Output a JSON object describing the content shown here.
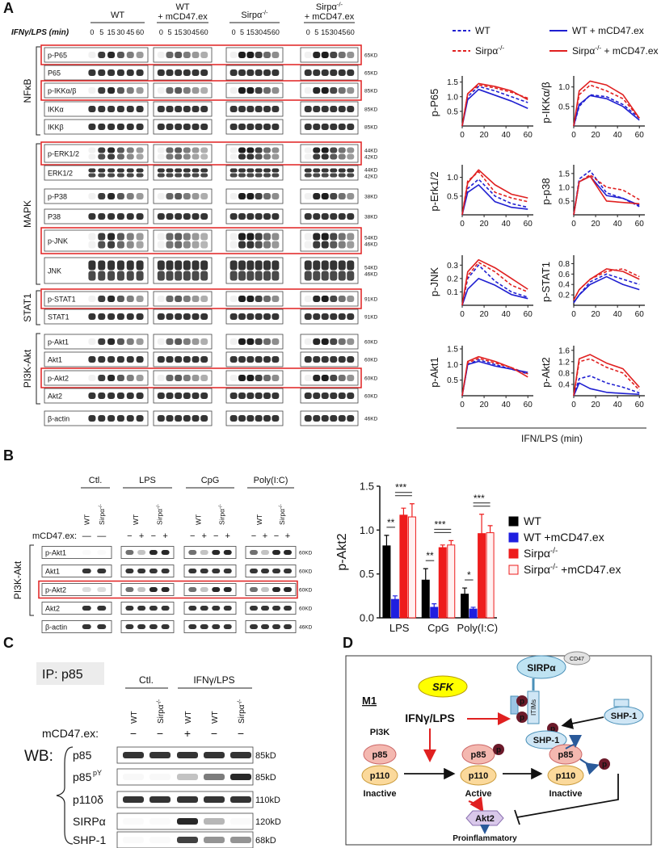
{
  "panel_a": {
    "label": "A",
    "groups": [
      [
        "WT"
      ],
      [
        "WT",
        "+ mCD47.ex"
      ],
      [
        "Sirpα-/-"
      ],
      [
        "Sirpα-/-",
        "+ mCD47.ex"
      ]
    ],
    "time_label": "IFNγ/LPS (min)",
    "times": [
      0,
      5,
      15,
      30,
      45,
      60
    ],
    "categories": [
      {
        "name": "NFκB",
        "rows": [
          {
            "label": "p-P65",
            "kd": [
              "65KD"
            ],
            "highlight": true
          },
          {
            "label": "P65",
            "kd": [
              "65KD"
            ]
          },
          {
            "label": "p-IKKα/β",
            "kd": [
              "85KD"
            ],
            "highlight": true
          },
          {
            "label": "IKKα",
            "kd": [
              "85KD"
            ]
          },
          {
            "label": "IKKβ",
            "kd": [
              "85KD"
            ]
          }
        ]
      },
      {
        "name": "MAPK",
        "rows": [
          {
            "label": "p-ERK1/2",
            "kd": [
              "44KD",
              "42KD"
            ],
            "highlight": true
          },
          {
            "label": "ERK1/2",
            "kd": [
              "44KD",
              "42KD"
            ]
          },
          {
            "label": "p-P38",
            "kd": [
              "38KD"
            ]
          },
          {
            "label": "P38",
            "kd": [
              "38KD"
            ]
          },
          {
            "label": "p-JNK",
            "kd": [
              "54KD",
              "46KD"
            ],
            "highlight": true
          },
          {
            "label": "JNK",
            "kd": [
              "54KD",
              "46KD"
            ]
          }
        ]
      },
      {
        "name": "STAT1",
        "rows": [
          {
            "label": "p-STAT1",
            "kd": [
              "91KD"
            ],
            "highlight": true
          },
          {
            "label": "STAT1",
            "kd": [
              "91KD"
            ]
          }
        ]
      },
      {
        "name": "PI3K-Akt",
        "rows": [
          {
            "label": "p-Akt1",
            "kd": [
              "60KD"
            ]
          },
          {
            "label": "Akt1",
            "kd": [
              "60KD"
            ]
          },
          {
            "label": "p-Akt2",
            "kd": [
              "60KD"
            ],
            "highlight": true
          },
          {
            "label": "Akt2",
            "kd": [
              "60KD"
            ]
          }
        ]
      }
    ],
    "loading": {
      "label": "β-actin",
      "kd": [
        "46KD"
      ]
    },
    "line_legend": [
      {
        "name": "WT",
        "color": "#1f1fd1",
        "dash": "dotted"
      },
      {
        "name": "Sirpα-/-",
        "color": "#e02020",
        "dash": "dotted"
      },
      {
        "name": "WT + mCD47.ex",
        "color": "#1f1fd1",
        "dash": "solid"
      },
      {
        "name": "Sirpα-/- + mCD47.ex",
        "color": "#e02020",
        "dash": "solid"
      }
    ],
    "line_xlabel": "IFN/LPS (min)"
  },
  "chart_data": [
    {
      "type": "line",
      "ylabel": "p-P65",
      "x": [
        0,
        5,
        15,
        30,
        45,
        60
      ],
      "xlim": [
        0,
        65
      ],
      "xticks": [
        0,
        20,
        40,
        60
      ],
      "ylim": [
        0,
        1.6
      ],
      "yticks": [
        0.5,
        {
          "value": 1,
          "label": "1.0"
        },
        1.5
      ],
      "series": [
        {
          "values": [
            0,
            1.0,
            1.35,
            1.2,
            1.0,
            0.8
          ]
        },
        {
          "values": [
            0,
            1.1,
            1.4,
            1.3,
            1.15,
            0.95
          ]
        },
        {
          "values": [
            0,
            0.9,
            1.25,
            1.05,
            0.85,
            0.6
          ]
        },
        {
          "values": [
            0,
            1.1,
            1.45,
            1.35,
            1.2,
            0.9
          ]
        }
      ]
    },
    {
      "type": "line",
      "ylabel": "p-IKKα/β",
      "x": [
        0,
        5,
        15,
        30,
        45,
        60
      ],
      "xlim": [
        0,
        65
      ],
      "xticks": [
        0,
        20,
        40,
        60
      ],
      "ylim": [
        0,
        1.2
      ],
      "yticks": [
        0.5,
        {
          "value": 1,
          "label": "1.0"
        }
      ],
      "series": [
        {
          "values": [
            0,
            0.5,
            0.8,
            0.75,
            0.55,
            0.2
          ]
        },
        {
          "values": [
            0,
            0.8,
            1.05,
            0.9,
            0.7,
            0.2
          ]
        },
        {
          "values": [
            0,
            0.55,
            0.78,
            0.7,
            0.5,
            0.15
          ]
        },
        {
          "values": [
            0,
            0.9,
            1.15,
            1.05,
            0.8,
            0.2
          ]
        }
      ]
    },
    {
      "type": "line",
      "ylabel": "p-Erk1/2",
      "x": [
        0,
        5,
        15,
        30,
        45,
        60
      ],
      "xlim": [
        0,
        65
      ],
      "xticks": [
        0,
        20,
        40,
        60
      ],
      "ylim": [
        0,
        1.25
      ],
      "yticks": [
        0.5,
        {
          "value": 1,
          "label": "1.0"
        }
      ],
      "series": [
        {
          "values": [
            0,
            0.7,
            0.95,
            0.5,
            0.3,
            0.2
          ]
        },
        {
          "values": [
            0,
            0.9,
            1.15,
            0.6,
            0.45,
            0.35
          ]
        },
        {
          "values": [
            0,
            0.6,
            0.8,
            0.35,
            0.2,
            0.15
          ]
        },
        {
          "values": [
            0,
            0.85,
            1.2,
            0.8,
            0.55,
            0.45
          ]
        }
      ]
    },
    {
      "type": "line",
      "ylabel": "p-p38",
      "x": [
        0,
        5,
        15,
        30,
        45,
        60
      ],
      "xlim": [
        0,
        65
      ],
      "xticks": [
        0,
        20,
        40,
        60
      ],
      "ylim": [
        0,
        1.7
      ],
      "yticks": [
        0.5,
        {
          "value": 1,
          "label": "1.0"
        },
        1.5
      ],
      "series": [
        {
          "values": [
            0,
            1.3,
            1.6,
            0.8,
            0.6,
            0.3
          ]
        },
        {
          "values": [
            0,
            1.2,
            1.45,
            1.0,
            0.9,
            0.55
          ]
        },
        {
          "values": [
            0,
            1.2,
            1.4,
            0.7,
            0.6,
            0.35
          ]
        },
        {
          "values": [
            0,
            1.2,
            1.4,
            0.5,
            0.45,
            0.4
          ]
        }
      ]
    },
    {
      "type": "line",
      "ylabel": "p-JNK",
      "x": [
        0,
        5,
        15,
        30,
        45,
        60
      ],
      "xlim": [
        0,
        65
      ],
      "xticks": [
        0,
        20,
        40,
        60
      ],
      "ylim": [
        0,
        0.35
      ],
      "yticks": [
        0.1,
        0.2,
        0.3
      ],
      "series": [
        {
          "values": [
            0,
            0.2,
            0.3,
            0.18,
            0.1,
            0.06
          ]
        },
        {
          "values": [
            0,
            0.22,
            0.32,
            0.25,
            0.15,
            0.1
          ]
        },
        {
          "values": [
            0,
            0.12,
            0.2,
            0.15,
            0.08,
            0.05
          ]
        },
        {
          "values": [
            0,
            0.25,
            0.34,
            0.28,
            0.2,
            0.12
          ]
        }
      ]
    },
    {
      "type": "line",
      "ylabel": "p-STAT1",
      "x": [
        0,
        5,
        15,
        30,
        45,
        60
      ],
      "xlim": [
        0,
        65
      ],
      "xticks": [
        0,
        20,
        40,
        60
      ],
      "ylim": [
        0,
        0.9
      ],
      "yticks": [
        0.2,
        0.4,
        0.6,
        0.8
      ],
      "series": [
        {
          "values": [
            0.05,
            0.2,
            0.45,
            0.6,
            0.5,
            0.4
          ]
        },
        {
          "values": [
            0.1,
            0.3,
            0.5,
            0.65,
            0.7,
            0.55
          ]
        },
        {
          "values": [
            0.05,
            0.2,
            0.4,
            0.55,
            0.4,
            0.3
          ]
        },
        {
          "values": [
            0.1,
            0.3,
            0.5,
            0.7,
            0.65,
            0.5
          ]
        }
      ]
    },
    {
      "type": "line",
      "ylabel": "p-Akt1",
      "x": [
        0,
        5,
        15,
        30,
        45,
        60
      ],
      "xlim": [
        0,
        65
      ],
      "xticks": [
        0,
        20,
        40,
        60
      ],
      "ylim": [
        0,
        1.5
      ],
      "yticks": [
        0.5,
        {
          "value": 1,
          "label": "1.0"
        },
        1.5
      ],
      "series": [
        {
          "values": [
            0,
            1.0,
            1.15,
            1.0,
            0.85,
            0.7
          ]
        },
        {
          "values": [
            0,
            1.05,
            1.2,
            1.05,
            0.9,
            0.7
          ]
        },
        {
          "values": [
            0,
            1.0,
            1.1,
            0.95,
            0.85,
            0.75
          ]
        },
        {
          "values": [
            0,
            1.1,
            1.25,
            1.1,
            0.9,
            0.6
          ]
        }
      ]
    },
    {
      "type": "line",
      "ylabel": "p-Akt2",
      "x": [
        0,
        5,
        15,
        30,
        45,
        60
      ],
      "xlim": [
        0,
        65
      ],
      "xticks": [
        0,
        20,
        40,
        60
      ],
      "ylim": [
        0,
        1.65
      ],
      "yticks": [
        0.4,
        0.8,
        1.2,
        1.6
      ],
      "series": [
        {
          "values": [
            0,
            0.6,
            0.7,
            0.45,
            0.3,
            0.1
          ]
        },
        {
          "values": [
            0,
            1.2,
            1.3,
            1.0,
            0.8,
            0.2
          ]
        },
        {
          "values": [
            0,
            0.45,
            0.25,
            0.12,
            0.08,
            0.05
          ]
        },
        {
          "values": [
            0,
            1.3,
            1.45,
            1.15,
            0.95,
            0.3
          ]
        }
      ]
    },
    {
      "type": "bar",
      "ylabel": "p-Akt2",
      "categories": [
        "LPS",
        "CpG",
        "Poly(I:C)"
      ],
      "ylim": [
        0,
        1.5
      ],
      "yticks": [
        {
          "value": 0,
          "label": "0.0"
        },
        0.5,
        {
          "value": 1,
          "label": "1.0"
        },
        1.5
      ],
      "series": [
        {
          "name": "WT",
          "color": "#000000",
          "values": [
            0.82,
            0.43,
            0.27
          ],
          "errors": [
            0.12,
            0.13,
            0.07
          ]
        },
        {
          "name": "WT +mCD47.ex",
          "color": "#1f1fe0",
          "values": [
            0.21,
            0.12,
            0.1
          ],
          "errors": [
            0.04,
            0.04,
            0.02
          ]
        },
        {
          "name": "Sirpα-/-",
          "color": "#ee1c1c",
          "values": [
            1.17,
            0.8,
            0.96
          ],
          "errors": [
            0.08,
            0.03,
            0.22
          ]
        },
        {
          "name": "Sirpα-/- +mCD47.ex",
          "color": "#ee1c1c",
          "fill": "#fff0f0",
          "values": [
            1.15,
            0.83,
            0.97
          ],
          "errors": [
            0.15,
            0.05,
            0.08
          ]
        }
      ],
      "significance": [
        [
          "**",
          "***"
        ],
        [
          "**",
          "***"
        ],
        [
          "*",
          "***"
        ]
      ]
    }
  ],
  "panel_b": {
    "label": "B",
    "groups": [
      "Ctl.",
      "LPS",
      "CpG",
      "Poly(I:C)"
    ],
    "lanes": [
      [
        "WT",
        "Sirpα-/-"
      ],
      [
        "WT",
        "Sirpα-/-"
      ],
      [
        "WT",
        "Sirpα-/-"
      ],
      [
        "WT",
        "Sirpα-/-"
      ]
    ],
    "treatment_label": "mCD47.ex:",
    "treatment": [
      [
        "—",
        "—"
      ],
      [
        "−",
        "+",
        "−",
        "+"
      ],
      [
        "−",
        "+",
        "−",
        "+"
      ],
      [
        "−",
        "+",
        "−",
        "+"
      ]
    ],
    "category": "PI3K-Akt",
    "rows": [
      {
        "label": "p-Akt1",
        "kd": "60KD"
      },
      {
        "label": "Akt1",
        "kd": "60KD"
      },
      {
        "label": "p-Akt2",
        "kd": "60KD",
        "highlight": true
      },
      {
        "label": "Akt2",
        "kd": "60KD"
      },
      {
        "label": "β-actin",
        "kd": "46KD"
      }
    ]
  },
  "panel_c": {
    "label": "C",
    "ip": "IP: p85",
    "groups": [
      "Ctl.",
      "IFNγ/LPS"
    ],
    "lanes": [
      "WT",
      "Sirpα-/-",
      "WT",
      "WT",
      "Sirpα-/-"
    ],
    "treatment_label": "mCD47.ex:",
    "treatment": [
      "−",
      "−",
      "+",
      "−",
      "−"
    ],
    "wb": "WB:",
    "rows": [
      {
        "label": "p85",
        "kd": "85kD"
      },
      {
        "label": "p85",
        "sup": "pY",
        "kd": "85kD"
      },
      {
        "label": "p110δ",
        "kd": "110kD"
      },
      {
        "label": "SIRPα",
        "kd": "120kD"
      },
      {
        "label": "SHP-1",
        "kd": "68kD"
      }
    ]
  },
  "panel_d": {
    "label": "D",
    "title": "M1",
    "sfk": "SFK",
    "stimulus": "IFNγ/LPS",
    "sirpa": "SIRPα",
    "cd47": "CD47",
    "itims": "ITIMs",
    "shp1_bound": "SHP-1",
    "shp1_free": "SHP-1",
    "pi3k": "PI3K",
    "phospho": "p",
    "states": [
      {
        "p85": "p85",
        "p110": "p110",
        "state": "Inactive"
      },
      {
        "p85": "p85",
        "p110": "p110",
        "state": "Active"
      },
      {
        "p85": "p85",
        "p110": "p110",
        "state": "Inactive"
      }
    ],
    "akt2": "Akt2",
    "outcome": "Proinflammatory"
  }
}
